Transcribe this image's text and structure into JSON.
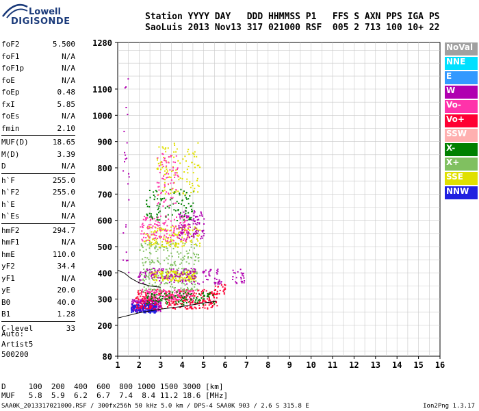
{
  "logo": {
    "line1": "Lowell",
    "line2": "DIGISONDE"
  },
  "header": {
    "labels": "Station YYYY DAY   DDD HHMMSS P1   FFS S AXN PPS IGA PS",
    "values": "SaoLuis 2013 Nov13 317 021000 RSF  005 2 713 100 10+ 22"
  },
  "params_group1": [
    {
      "key": "foF2",
      "value": "5.500"
    },
    {
      "key": "foF1",
      "value": "N/A"
    },
    {
      "key": "foF1p",
      "value": "N/A"
    },
    {
      "key": "foE",
      "value": "N/A"
    },
    {
      "key": "foEp",
      "value": "0.48"
    },
    {
      "key": "fxI",
      "value": "5.85"
    },
    {
      "key": "foEs",
      "value": "N/A"
    },
    {
      "key": "fmin",
      "value": "2.10"
    }
  ],
  "params_group2": [
    {
      "key": "MUF(D)",
      "value": "18.65"
    },
    {
      "key": "M(D)",
      "value": "3.39"
    },
    {
      "key": "D",
      "value": "N/A"
    }
  ],
  "params_group3": [
    {
      "key": "h`F",
      "value": "255.0"
    },
    {
      "key": "h`F2",
      "value": "255.0"
    },
    {
      "key": "h`E",
      "value": "N/A"
    },
    {
      "key": "h`Es",
      "value": "N/A"
    }
  ],
  "params_group4": [
    {
      "key": "hmF2",
      "value": "294.7"
    },
    {
      "key": "hmF1",
      "value": "N/A"
    },
    {
      "key": "hmE",
      "value": "110.0"
    },
    {
      "key": "yF2",
      "value": "34.4"
    },
    {
      "key": "yF1",
      "value": "N/A"
    },
    {
      "key": "yE",
      "value": "20.0"
    },
    {
      "key": "B0",
      "value": "40.0"
    },
    {
      "key": "B1",
      "value": "1.28"
    }
  ],
  "params_group5": [
    {
      "key": "C-level",
      "value": "33"
    }
  ],
  "auto": {
    "line1": "Auto:",
    "line2": "Artist5",
    "line3": "500200"
  },
  "legend": [
    {
      "label": "NoVal",
      "color": "#a0a0a0"
    },
    {
      "label": "NNE",
      "color": "#00e0ff"
    },
    {
      "label": "E",
      "color": "#3399ff"
    },
    {
      "label": "W",
      "color": "#b000b0"
    },
    {
      "label": "Vo-",
      "color": "#ff33aa"
    },
    {
      "label": "Vo+",
      "color": "#ff0033"
    },
    {
      "label": "SSW",
      "color": "#ffb0b0"
    },
    {
      "label": "X-",
      "color": "#008000"
    },
    {
      "label": "X+",
      "color": "#80c060"
    },
    {
      "label": "SSE",
      "color": "#e0e000"
    },
    {
      "label": "NNW",
      "color": "#2020e0"
    }
  ],
  "bottom": {
    "d_line": "D     100  200  400  600  800 1000 1500 3000 [km]",
    "muf_line": "MUF   5.8  5.9  6.2  6.7  7.4  8.4 11.2 18.6 [MHz]"
  },
  "footer": {
    "left": "SAA0K_2013317021000.RSF / 300fx256h 50 kHz 5.0 km / DPS-4 SAA0K 903 / 2.6 S 315.8 E",
    "right": "Ion2Png 1.3.17"
  },
  "chart_data": {
    "type": "scatter",
    "title": "",
    "xlabel": "",
    "ylabel": "",
    "xlim": [
      1,
      16
    ],
    "ylim": [
      80,
      1280
    ],
    "x_ticks": [
      1,
      2,
      3,
      4,
      5,
      6,
      7,
      8,
      9,
      10,
      11,
      12,
      13,
      14,
      15,
      16
    ],
    "y_ticks": [
      80,
      200,
      300,
      400,
      500,
      600,
      700,
      800,
      900,
      1000,
      1100,
      1280
    ],
    "grid": true,
    "legend_position": "right",
    "clusters": [
      {
        "series": "W",
        "x": [
          1.6,
          3.0
        ],
        "y": [
          255,
          300
        ],
        "n": 260
      },
      {
        "series": "NNW",
        "x": [
          1.6,
          2.8
        ],
        "y": [
          250,
          285
        ],
        "n": 140
      },
      {
        "series": "Vo+",
        "x": [
          1.8,
          5.6
        ],
        "y": [
          265,
          340
        ],
        "n": 320
      },
      {
        "series": "Vo-",
        "x": [
          2.0,
          4.5
        ],
        "y": [
          300,
          340
        ],
        "n": 160
      },
      {
        "series": "X-",
        "x": [
          2.3,
          5.5
        ],
        "y": [
          280,
          330
        ],
        "n": 120
      },
      {
        "series": "X+",
        "x": [
          2.0,
          4.7
        ],
        "y": [
          330,
          420
        ],
        "n": 150
      },
      {
        "series": "SSE",
        "x": [
          2.5,
          4.6
        ],
        "y": [
          370,
          410
        ],
        "n": 160
      },
      {
        "series": "W",
        "x": [
          1.9,
          5.8
        ],
        "y": [
          360,
          420
        ],
        "n": 150
      },
      {
        "series": "X+",
        "x": [
          2.0,
          4.8
        ],
        "y": [
          430,
          520
        ],
        "n": 120
      },
      {
        "series": "SSE",
        "x": [
          2.2,
          4.8
        ],
        "y": [
          500,
          580
        ],
        "n": 160
      },
      {
        "series": "Vo-",
        "x": [
          2.0,
          4.3
        ],
        "y": [
          520,
          620
        ],
        "n": 150
      },
      {
        "series": "W",
        "x": [
          3.8,
          5.0
        ],
        "y": [
          530,
          640
        ],
        "n": 100
      },
      {
        "series": "X-",
        "x": [
          2.3,
          4.5
        ],
        "y": [
          600,
          720
        ],
        "n": 100
      },
      {
        "series": "SSE",
        "x": [
          2.8,
          4.8
        ],
        "y": [
          700,
          900
        ],
        "n": 110
      },
      {
        "series": "Vo-",
        "x": [
          2.8,
          3.8
        ],
        "y": [
          650,
          860
        ],
        "n": 70
      },
      {
        "series": "W",
        "x": [
          1.2,
          1.5
        ],
        "y": [
          400,
          1150
        ],
        "n": 25
      },
      {
        "series": "W",
        "x": [
          6.3,
          6.9
        ],
        "y": [
          360,
          420
        ],
        "n": 24
      },
      {
        "series": "Vo+",
        "x": [
          5.5,
          6.0
        ],
        "y": [
          320,
          360
        ],
        "n": 22
      }
    ],
    "traces": [
      {
        "x": [
          1.0,
          2.0,
          3.0,
          4.0,
          5.0,
          5.6
        ],
        "y": [
          228,
          248,
          262,
          272,
          285,
          292
        ]
      },
      {
        "x": [
          1.0,
          1.3,
          1.6,
          2.0,
          2.5,
          3.0
        ],
        "y": [
          410,
          400,
          380,
          362,
          350,
          345
        ]
      }
    ]
  }
}
